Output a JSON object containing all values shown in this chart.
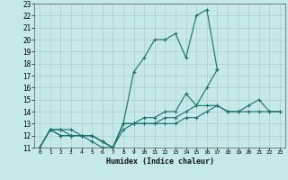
{
  "xlabel": "Humidex (Indice chaleur)",
  "xlim": [
    -0.5,
    23.5
  ],
  "ylim": [
    11,
    23
  ],
  "xticks": [
    0,
    1,
    2,
    3,
    4,
    5,
    6,
    7,
    8,
    9,
    10,
    11,
    12,
    13,
    14,
    15,
    16,
    17,
    18,
    19,
    20,
    21,
    22,
    23
  ],
  "yticks": [
    11,
    12,
    13,
    14,
    15,
    16,
    17,
    18,
    19,
    20,
    21,
    22,
    23
  ],
  "background_color": "#c5e8e8",
  "grid_color": "#b0cccc",
  "line_color": "#1a7070",
  "lines": [
    {
      "x": [
        0,
        1,
        2,
        3,
        4,
        5,
        6,
        7,
        8,
        9,
        10,
        11,
        12,
        13,
        14,
        15,
        16,
        17
      ],
      "y": [
        11,
        12.5,
        12.5,
        12,
        12,
        11.5,
        11,
        11,
        13,
        17.3,
        18.5,
        20,
        20,
        20.5,
        18.5,
        22,
        22.5,
        17.5
      ]
    },
    {
      "x": [
        0,
        1,
        2,
        3,
        4,
        5,
        6,
        7,
        8,
        9,
        10,
        11,
        12,
        13,
        14,
        15,
        16,
        17
      ],
      "y": [
        11,
        12.5,
        12.5,
        12.5,
        12,
        12,
        11.5,
        11,
        13,
        13,
        13.5,
        13.5,
        14,
        14,
        15.5,
        14.5,
        16,
        17.5
      ]
    },
    {
      "x": [
        0,
        1,
        2,
        3,
        4,
        5,
        6,
        7,
        8,
        9,
        10,
        11,
        12,
        13,
        14,
        15,
        16,
        17,
        18,
        19,
        20,
        21,
        22,
        23
      ],
      "y": [
        11,
        12.5,
        12,
        12,
        12,
        12,
        11.5,
        11,
        13,
        13,
        13,
        13,
        13.5,
        13.5,
        14,
        14.5,
        14.5,
        14.5,
        14,
        14,
        14.5,
        15,
        14,
        14
      ]
    },
    {
      "x": [
        0,
        1,
        2,
        3,
        4,
        5,
        6,
        7,
        8,
        9,
        10,
        11,
        12,
        13,
        14,
        15,
        16,
        17,
        18,
        19,
        20,
        21,
        22,
        23
      ],
      "y": [
        11,
        12.5,
        12,
        12,
        12,
        12,
        11.5,
        11,
        12.5,
        13,
        13,
        13,
        13,
        13,
        13.5,
        13.5,
        14,
        14.5,
        14,
        14,
        14,
        14,
        14,
        14
      ]
    }
  ]
}
